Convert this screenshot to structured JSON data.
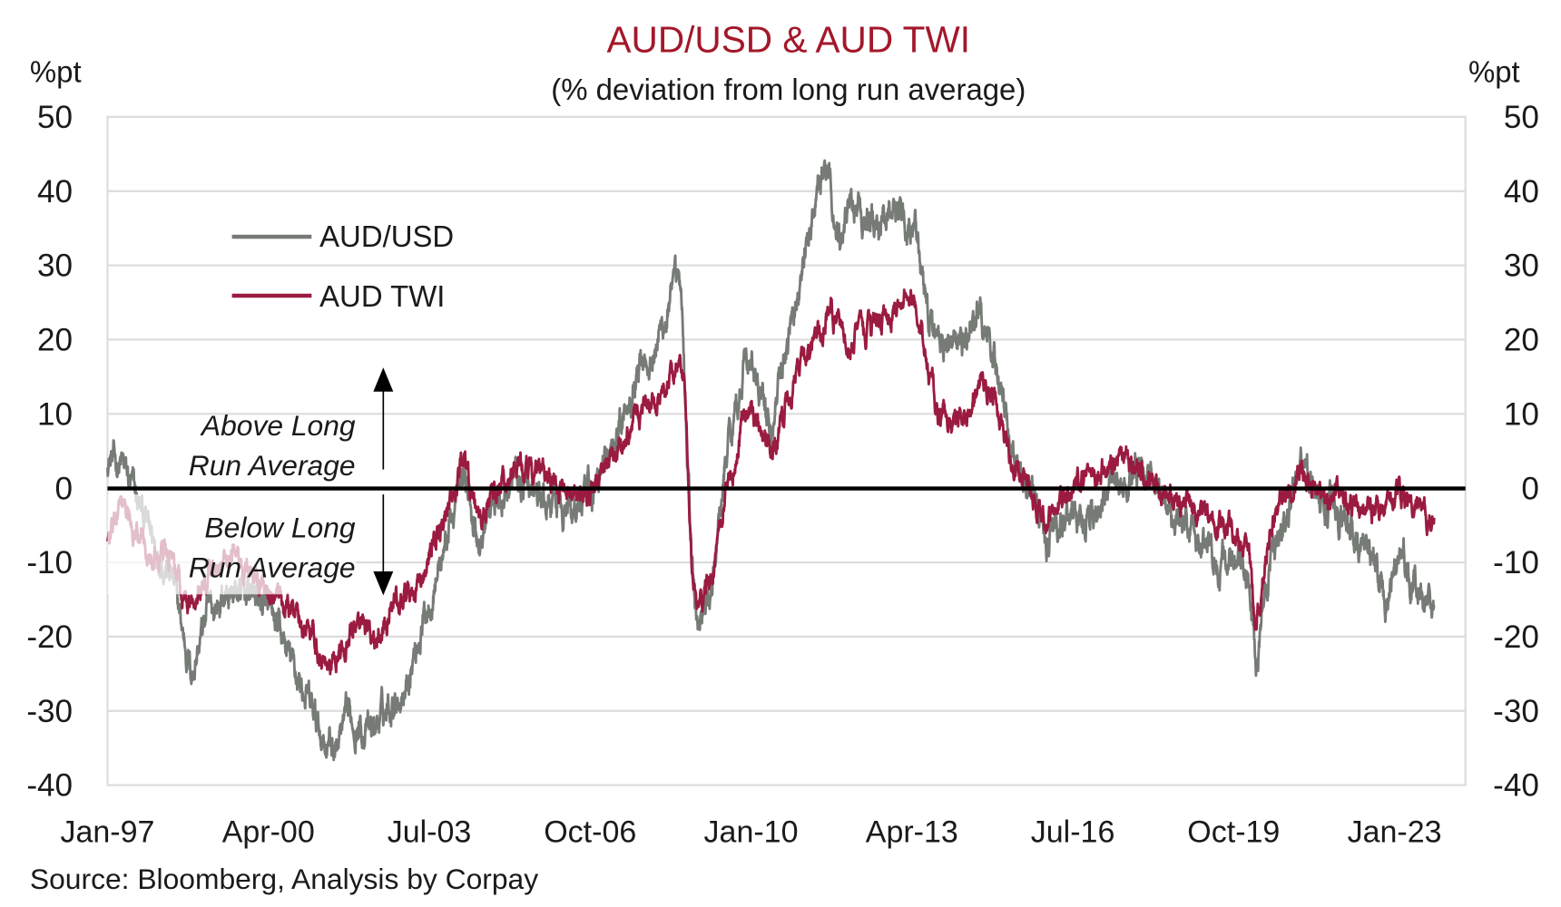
{
  "chart_data": {
    "type": "line",
    "title": "AUD/USD & AUD TWI",
    "subtitle": "(% deviation from long run average)",
    "ylabel_left": "%pt",
    "ylabel_right": "%pt",
    "ylim": [
      -40,
      50
    ],
    "yticks": [
      50,
      40,
      30,
      20,
      10,
      0,
      -10,
      -20,
      -30,
      -40
    ],
    "ytick_labels": [
      "50",
      "40",
      "30",
      "20",
      "10",
      "0",
      "-10",
      "-20",
      "-30",
      "-40"
    ],
    "xlim": [
      1997.0,
      2024.4
    ],
    "xticks": [
      1997.0,
      2000.25,
      2003.5,
      2006.75,
      2010.0,
      2013.25,
      2016.5,
      2019.75,
      2023.0
    ],
    "xtick_labels": [
      "Jan-97",
      "Apr-00",
      "Jul-03",
      "Oct-06",
      "Jan-10",
      "Apr-13",
      "Jul-16",
      "Oct-19",
      "Jan-23"
    ],
    "grid": true,
    "legend_position": "top-left",
    "reference_line": 0,
    "annotations": {
      "above": [
        "Above Long",
        "Run Average"
      ],
      "below": [
        "Below Long",
        "Run Average"
      ]
    },
    "source": "Source: Bloomberg, Analysis by Corpay",
    "series": [
      {
        "name": "AUD/USD",
        "color": "#767b76",
        "points": [
          [
            1997.0,
            4
          ],
          [
            1997.3,
            3
          ],
          [
            1997.8,
            -5
          ],
          [
            1998.3,
            -12
          ],
          [
            1998.6,
            -22
          ],
          [
            1998.7,
            -25
          ],
          [
            1999.0,
            -17
          ],
          [
            1999.5,
            -14
          ],
          [
            2000.0,
            -14
          ],
          [
            2000.5,
            -20
          ],
          [
            2001.0,
            -28
          ],
          [
            2001.3,
            -33
          ],
          [
            2001.6,
            -35
          ],
          [
            2001.9,
            -31
          ],
          [
            2002.3,
            -33
          ],
          [
            2002.8,
            -28
          ],
          [
            2003.0,
            -27
          ],
          [
            2003.5,
            -15
          ],
          [
            2004.0,
            -3
          ],
          [
            2004.2,
            2
          ],
          [
            2004.5,
            -8
          ],
          [
            2004.8,
            -2
          ],
          [
            2005.2,
            2
          ],
          [
            2005.8,
            -2
          ],
          [
            2006.3,
            -3
          ],
          [
            2006.8,
            -1
          ],
          [
            2007.3,
            8
          ],
          [
            2007.8,
            18
          ],
          [
            2008.0,
            18
          ],
          [
            2008.5,
            27
          ],
          [
            2008.6,
            25
          ],
          [
            2008.8,
            -10
          ],
          [
            2008.9,
            -18
          ],
          [
            2009.2,
            -15
          ],
          [
            2009.5,
            5
          ],
          [
            2009.9,
            18
          ],
          [
            2010.4,
            8
          ],
          [
            2010.9,
            25
          ],
          [
            2011.2,
            35
          ],
          [
            2011.5,
            43
          ],
          [
            2011.8,
            33
          ],
          [
            2012.0,
            40
          ],
          [
            2012.5,
            35
          ],
          [
            2012.8,
            38
          ],
          [
            2013.3,
            37
          ],
          [
            2013.5,
            25
          ],
          [
            2013.8,
            20
          ],
          [
            2014.3,
            19
          ],
          [
            2014.6,
            24
          ],
          [
            2014.9,
            18
          ],
          [
            2015.3,
            5
          ],
          [
            2015.8,
            -3
          ],
          [
            2016.0,
            -7
          ],
          [
            2016.5,
            -3
          ],
          [
            2017.0,
            -3
          ],
          [
            2017.5,
            1
          ],
          [
            2018.0,
            2
          ],
          [
            2018.5,
            -3
          ],
          [
            2019.0,
            -7
          ],
          [
            2019.5,
            -10
          ],
          [
            2020.0,
            -11
          ],
          [
            2020.2,
            -22
          ],
          [
            2020.5,
            -10
          ],
          [
            2020.9,
            -2
          ],
          [
            2021.1,
            3
          ],
          [
            2021.6,
            -3
          ],
          [
            2022.0,
            -4
          ],
          [
            2022.5,
            -8
          ],
          [
            2022.8,
            -16
          ],
          [
            2023.1,
            -8
          ],
          [
            2023.4,
            -14
          ],
          [
            2023.8,
            -16
          ]
        ]
      },
      {
        "name": "AUD TWI",
        "color": "#9b1b40",
        "points": [
          [
            1997.0,
            -7
          ],
          [
            1997.3,
            -3
          ],
          [
            1997.8,
            -8
          ],
          [
            1998.3,
            -10
          ],
          [
            1998.6,
            -16
          ],
          [
            1999.0,
            -12
          ],
          [
            1999.5,
            -9
          ],
          [
            2000.0,
            -12
          ],
          [
            2000.5,
            -15
          ],
          [
            2001.0,
            -18
          ],
          [
            2001.3,
            -22
          ],
          [
            2001.6,
            -24
          ],
          [
            2002.0,
            -19
          ],
          [
            2002.4,
            -20
          ],
          [
            2002.8,
            -16
          ],
          [
            2003.2,
            -15
          ],
          [
            2003.6,
            -7
          ],
          [
            2004.0,
            0
          ],
          [
            2004.2,
            4
          ],
          [
            2004.5,
            -5
          ],
          [
            2004.8,
            -1
          ],
          [
            2005.3,
            3
          ],
          [
            2005.8,
            1
          ],
          [
            2006.3,
            -1
          ],
          [
            2006.8,
            0
          ],
          [
            2007.3,
            5
          ],
          [
            2007.8,
            10
          ],
          [
            2008.2,
            12
          ],
          [
            2008.5,
            17
          ],
          [
            2008.65,
            15
          ],
          [
            2008.8,
            -8
          ],
          [
            2008.9,
            -16
          ],
          [
            2009.2,
            -13
          ],
          [
            2009.5,
            0
          ],
          [
            2009.9,
            10
          ],
          [
            2010.4,
            5
          ],
          [
            2010.9,
            15
          ],
          [
            2011.3,
            20
          ],
          [
            2011.6,
            24
          ],
          [
            2012.0,
            20
          ],
          [
            2012.5,
            22
          ],
          [
            2013.0,
            24
          ],
          [
            2013.3,
            26
          ],
          [
            2013.5,
            18
          ],
          [
            2013.8,
            10
          ],
          [
            2014.3,
            9
          ],
          [
            2014.6,
            14
          ],
          [
            2014.9,
            13
          ],
          [
            2015.3,
            3
          ],
          [
            2015.8,
            -2
          ],
          [
            2016.0,
            -4
          ],
          [
            2016.5,
            0
          ],
          [
            2017.0,
            2
          ],
          [
            2017.5,
            4
          ],
          [
            2018.0,
            2
          ],
          [
            2018.5,
            -1
          ],
          [
            2019.0,
            -3
          ],
          [
            2019.5,
            -5
          ],
          [
            2020.0,
            -6
          ],
          [
            2020.2,
            -18
          ],
          [
            2020.5,
            -5
          ],
          [
            2020.9,
            0
          ],
          [
            2021.1,
            3
          ],
          [
            2021.6,
            -2
          ],
          [
            2022.0,
            -1
          ],
          [
            2022.5,
            -3
          ],
          [
            2022.8,
            -3
          ],
          [
            2023.1,
            0
          ],
          [
            2023.5,
            -3
          ],
          [
            2023.8,
            -4
          ]
        ]
      }
    ]
  },
  "colors": {
    "title": "#a3182a",
    "text": "#1a1a1a",
    "grid": "#dcdcdc",
    "zero": "#000000"
  }
}
